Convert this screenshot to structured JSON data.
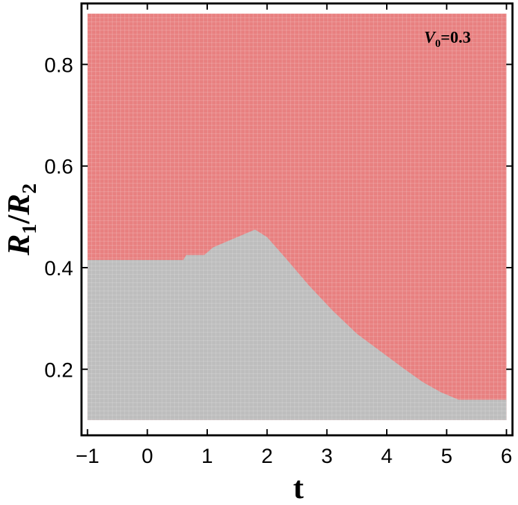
{
  "chart_data": {
    "type": "heatmap",
    "title": "",
    "xlabel": "t",
    "ylabel": {
      "base1": "R",
      "sub1": "1",
      "slash": "/",
      "base2": "R",
      "sub2": "2"
    },
    "annotation": {
      "base": "V",
      "sub": "0",
      "rest": "=0.3"
    },
    "xlim": [
      -1.1,
      6.1
    ],
    "ylim": [
      0.07,
      0.92
    ],
    "xticks": [
      {
        "v": -1,
        "label": "−1"
      },
      {
        "v": 0,
        "label": "0"
      },
      {
        "v": 1,
        "label": "1"
      },
      {
        "v": 2,
        "label": "2"
      },
      {
        "v": 3,
        "label": "3"
      },
      {
        "v": 4,
        "label": "4"
      },
      {
        "v": 5,
        "label": "5"
      },
      {
        "v": 6,
        "label": "6"
      }
    ],
    "yticks": [
      {
        "v": 0.2,
        "label": "0.2"
      },
      {
        "v": 0.4,
        "label": "0.4"
      },
      {
        "v": 0.6,
        "label": "0.6"
      },
      {
        "v": 0.8,
        "label": "0.8"
      }
    ],
    "data_extent": {
      "x": [
        -1.0,
        6.0
      ],
      "y": [
        0.1,
        0.9
      ]
    },
    "regions": [
      {
        "color": "#e88080",
        "description_of_position": "above boundary"
      },
      {
        "color": "#bdbdbd",
        "description_of_position": "below boundary"
      }
    ],
    "boundary": [
      [
        -1.0,
        0.415
      ],
      [
        0.0,
        0.415
      ],
      [
        0.6,
        0.415
      ],
      [
        0.65,
        0.425
      ],
      [
        0.95,
        0.425
      ],
      [
        1.1,
        0.44
      ],
      [
        1.5,
        0.46
      ],
      [
        1.8,
        0.475
      ],
      [
        2.0,
        0.46
      ],
      [
        2.3,
        0.42
      ],
      [
        2.7,
        0.365
      ],
      [
        3.1,
        0.315
      ],
      [
        3.5,
        0.27
      ],
      [
        3.9,
        0.235
      ],
      [
        4.3,
        0.2
      ],
      [
        4.6,
        0.175
      ],
      [
        4.9,
        0.155
      ],
      [
        5.2,
        0.14
      ],
      [
        5.5,
        0.14
      ],
      [
        6.0,
        0.14
      ]
    ]
  }
}
